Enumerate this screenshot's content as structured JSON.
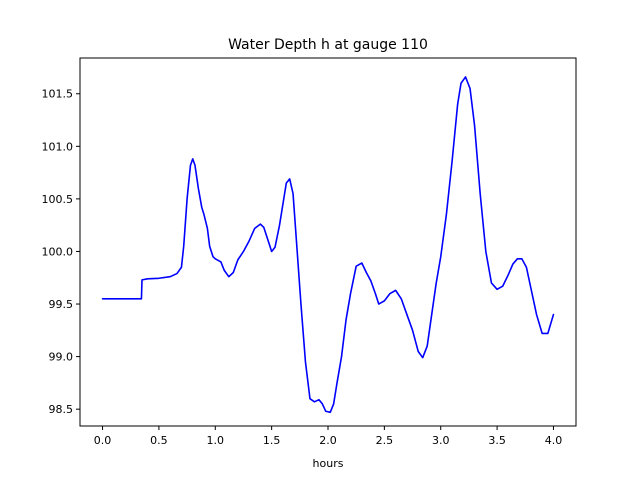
{
  "chart_data": {
    "type": "line",
    "title": "Water Depth h at gauge 110",
    "xlabel": "hours",
    "ylabel": "",
    "xlim": [
      -0.2,
      4.2
    ],
    "ylim": [
      98.34,
      101.84
    ],
    "xticks": [
      0.0,
      0.5,
      1.0,
      1.5,
      2.0,
      2.5,
      3.0,
      3.5,
      4.0
    ],
    "xtick_labels": [
      "0.0",
      "0.5",
      "1.0",
      "1.5",
      "2.0",
      "2.5",
      "3.0",
      "3.5",
      "4.0"
    ],
    "yticks": [
      98.5,
      99.0,
      99.5,
      100.0,
      100.5,
      101.0,
      101.5
    ],
    "ytick_labels": [
      "98.5",
      "99.0",
      "99.5",
      "100.0",
      "100.5",
      "101.0",
      "101.5"
    ],
    "grid": false,
    "series": [
      {
        "color": "#0000ff",
        "x": [
          0.0,
          0.2,
          0.34,
          0.345,
          0.35,
          0.4,
          0.5,
          0.6,
          0.66,
          0.7,
          0.72,
          0.75,
          0.78,
          0.8,
          0.82,
          0.85,
          0.88,
          0.9,
          0.93,
          0.95,
          0.98,
          1.0,
          1.05,
          1.08,
          1.12,
          1.16,
          1.2,
          1.25,
          1.3,
          1.35,
          1.4,
          1.43,
          1.47,
          1.5,
          1.53,
          1.57,
          1.6,
          1.63,
          1.66,
          1.69,
          1.72,
          1.76,
          1.8,
          1.84,
          1.88,
          1.92,
          1.95,
          1.98,
          2.02,
          2.05,
          2.08,
          2.12,
          2.16,
          2.2,
          2.25,
          2.3,
          2.34,
          2.38,
          2.42,
          2.45,
          2.5,
          2.55,
          2.6,
          2.65,
          2.7,
          2.75,
          2.8,
          2.84,
          2.88,
          2.92,
          2.96,
          3.0,
          3.05,
          3.1,
          3.15,
          3.18,
          3.22,
          3.26,
          3.3,
          3.35,
          3.4,
          3.45,
          3.5,
          3.55,
          3.6,
          3.64,
          3.68,
          3.72,
          3.76,
          3.8,
          3.85,
          3.9,
          3.95,
          4.0
        ],
        "y": [
          99.55,
          99.55,
          99.55,
          99.55,
          99.73,
          99.74,
          99.745,
          99.76,
          99.79,
          99.85,
          100.05,
          100.5,
          100.82,
          100.88,
          100.82,
          100.6,
          100.42,
          100.35,
          100.22,
          100.05,
          99.95,
          99.93,
          99.9,
          99.82,
          99.76,
          99.8,
          99.92,
          100.0,
          100.1,
          100.22,
          100.26,
          100.23,
          100.1,
          100.0,
          100.04,
          100.25,
          100.45,
          100.65,
          100.69,
          100.55,
          100.1,
          99.5,
          98.95,
          98.6,
          98.57,
          98.59,
          98.55,
          98.48,
          98.47,
          98.55,
          98.75,
          99.0,
          99.35,
          99.6,
          99.86,
          99.89,
          99.8,
          99.72,
          99.6,
          99.5,
          99.53,
          99.6,
          99.63,
          99.55,
          99.4,
          99.25,
          99.05,
          98.99,
          99.1,
          99.4,
          99.7,
          99.95,
          100.35,
          100.85,
          101.4,
          101.6,
          101.66,
          101.55,
          101.2,
          100.55,
          100.0,
          99.7,
          99.64,
          99.67,
          99.78,
          99.88,
          99.93,
          99.93,
          99.85,
          99.65,
          99.4,
          99.22,
          99.22,
          99.4
        ]
      }
    ]
  }
}
